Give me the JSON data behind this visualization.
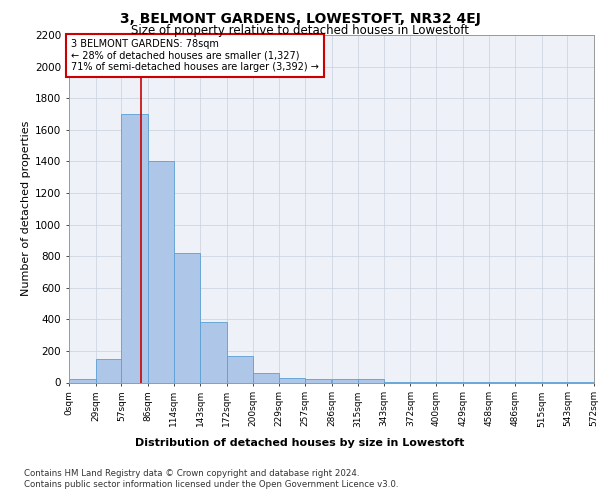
{
  "title": "3, BELMONT GARDENS, LOWESTOFT, NR32 4EJ",
  "subtitle": "Size of property relative to detached houses in Lowestoft",
  "xlabel": "Distribution of detached houses by size in Lowestoft",
  "ylabel": "Number of detached properties",
  "bin_edges": [
    0,
    29,
    57,
    86,
    114,
    143,
    172,
    200,
    229,
    257,
    286,
    315,
    343,
    372,
    400,
    429,
    458,
    486,
    515,
    543,
    572
  ],
  "bar_heights": [
    20,
    150,
    1700,
    1400,
    820,
    380,
    165,
    60,
    30,
    20,
    20,
    20,
    5,
    5,
    5,
    5,
    5,
    5,
    5,
    5
  ],
  "bar_color": "#aec6e8",
  "bar_edge_color": "#5a9fd4",
  "grid_color": "#c8d0dc",
  "property_line_x": 78,
  "property_line_color": "#cc0000",
  "annotation_text": "3 BELMONT GARDENS: 78sqm\n← 28% of detached houses are smaller (1,327)\n71% of semi-detached houses are larger (3,392) →",
  "annotation_box_color": "#ffffff",
  "annotation_box_edge_color": "#cc0000",
  "ylim": [
    0,
    2200
  ],
  "yticks": [
    0,
    200,
    400,
    600,
    800,
    1000,
    1200,
    1400,
    1600,
    1800,
    2000,
    2200
  ],
  "footer_line1": "Contains HM Land Registry data © Crown copyright and database right 2024.",
  "footer_line2": "Contains public sector information licensed under the Open Government Licence v3.0.",
  "bg_color": "#eef2f8"
}
